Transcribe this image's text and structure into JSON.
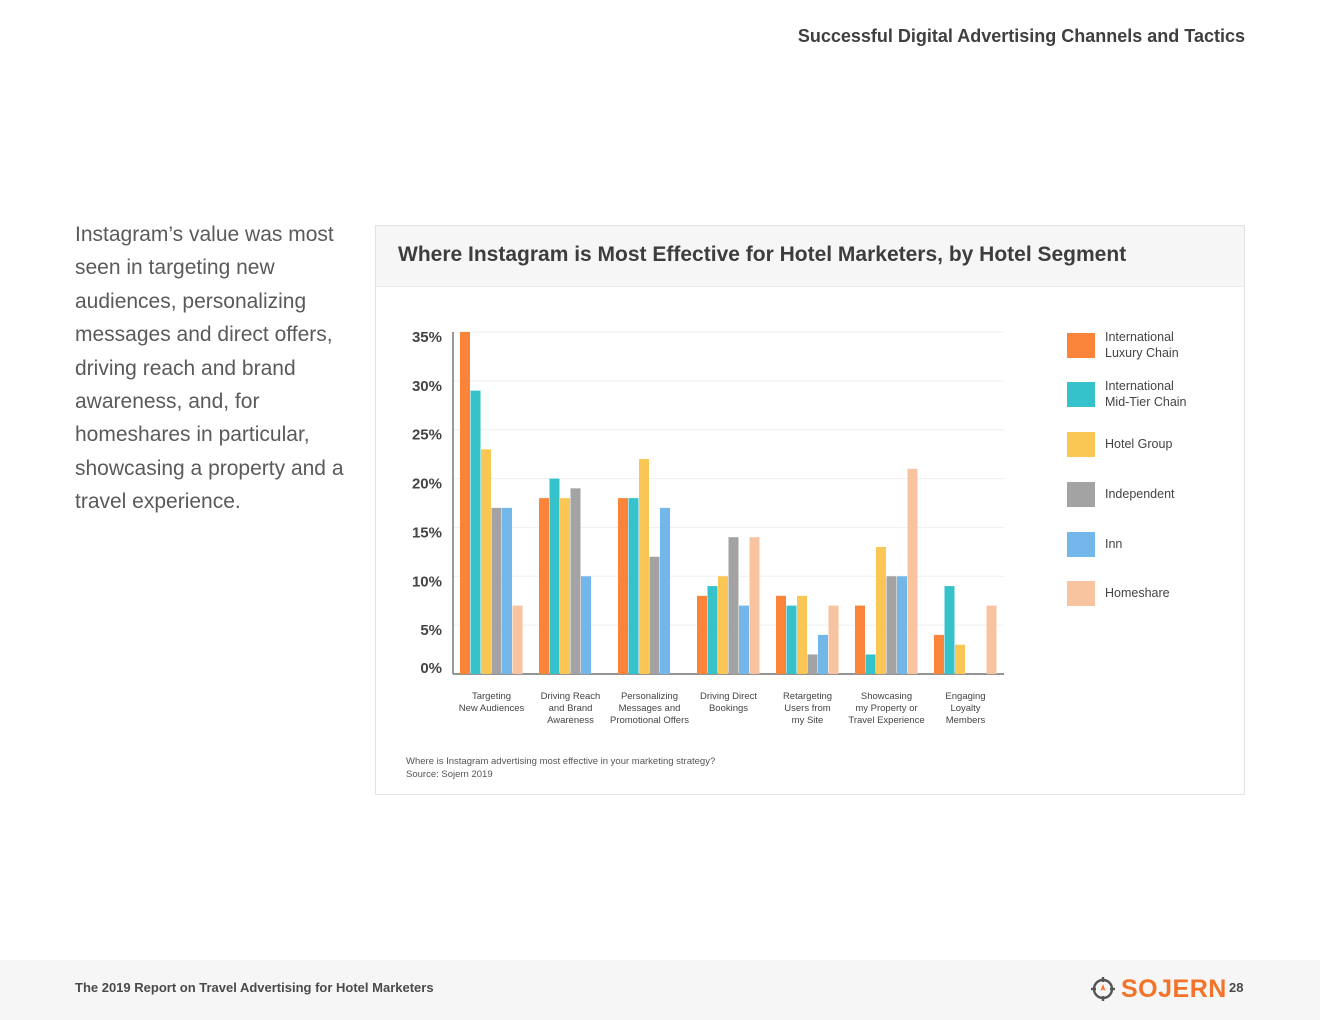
{
  "header": {
    "section_title": "Successful Digital Advertising Channels and Tactics"
  },
  "intro": {
    "text": "Instagram’s value was most seen in targeting new audiences, personalizing messages and direct offers, driving reach and brand awareness, and, for homeshares in particular, showcasing a property and a travel experience."
  },
  "chart_data": {
    "type": "bar",
    "title": "Where Instagram is Most Effective for Hotel Marketers, by Hotel Segment",
    "categories": [
      [
        "Targeting",
        "New Audiences"
      ],
      [
        "Driving Reach",
        "and Brand",
        "Awareness"
      ],
      [
        "Personalizing",
        "Messages and",
        "Promotional Offers"
      ],
      [
        "Driving Direct",
        "Bookings"
      ],
      [
        "Retargeting",
        "Users from",
        "my Site"
      ],
      [
        "Showcasing",
        "my Property or",
        "Travel Experience"
      ],
      [
        "Engaging",
        "Loyalty",
        "Members"
      ]
    ],
    "series": [
      {
        "name": "International Luxury Chain",
        "legend_lines": [
          "International",
          "Luxury Chain"
        ],
        "color": "#f9843a",
        "values": [
          35,
          18,
          18,
          8,
          8,
          7,
          4
        ]
      },
      {
        "name": "International Mid-Tier Chain",
        "legend_lines": [
          "International",
          "Mid-Tier Chain"
        ],
        "color": "#36c2cb",
        "values": [
          29,
          20,
          18,
          9,
          7,
          2,
          9
        ]
      },
      {
        "name": "Hotel Group",
        "legend_lines": [
          "Hotel Group"
        ],
        "color": "#fbc754",
        "values": [
          23,
          18,
          22,
          10,
          8,
          13,
          3
        ]
      },
      {
        "name": "Independent",
        "legend_lines": [
          "Independent"
        ],
        "color": "#a3a3a3",
        "values": [
          17,
          19,
          12,
          14,
          2,
          10,
          0
        ]
      },
      {
        "name": "Inn",
        "legend_lines": [
          "Inn"
        ],
        "color": "#72b6ea",
        "values": [
          17,
          10,
          17,
          7,
          4,
          10,
          0
        ]
      },
      {
        "name": "Homeshare",
        "legend_lines": [
          "Homeshare"
        ],
        "color": "#f8c49f",
        "values": [
          7,
          0,
          0,
          14,
          7,
          21,
          7
        ]
      }
    ],
    "ylim": [
      0,
      35
    ],
    "yticks": [
      "0%",
      "5%",
      "10%",
      "15%",
      "20%",
      "25%",
      "30%",
      "35%"
    ],
    "legend_position": "right",
    "grid": true
  },
  "notes": {
    "question": "Where is Instagram advertising most effective in your marketing strategy?",
    "source": "Source: Sojern 2019"
  },
  "footer": {
    "report_title": "The 2019 Report on Travel Advertising for Hotel Marketers",
    "brand": "SOJERN",
    "page_number": "28"
  }
}
